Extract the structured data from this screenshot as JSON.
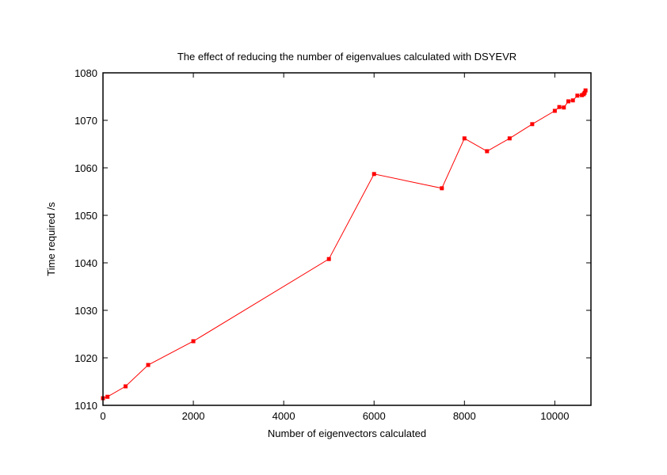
{
  "chart_data": {
    "type": "line",
    "title": "The effect of reducing the number of eigenvalues calculated with DSYEVR",
    "xlabel": "Number of eigenvectors calculated",
    "ylabel": "Time required /s",
    "xlim": [
      0,
      10800
    ],
    "ylim": [
      1010,
      1080
    ],
    "xticks": [
      0,
      2000,
      4000,
      6000,
      8000,
      10000
    ],
    "yticks": [
      1010,
      1020,
      1030,
      1040,
      1050,
      1060,
      1070,
      1080
    ],
    "grid": false,
    "series": [
      {
        "name": "DSYEVR",
        "color": "#ff0000",
        "x": [
          0,
          100,
          500,
          1000,
          2000,
          5000,
          6000,
          7500,
          8000,
          8500,
          9000,
          9500,
          10000,
          10100,
          10200,
          10300,
          10400,
          10500,
          10600,
          10640,
          10660,
          10680
        ],
        "y": [
          1011.5,
          1011.8,
          1014.0,
          1018.5,
          1023.5,
          1040.8,
          1058.7,
          1055.7,
          1066.2,
          1063.5,
          1066.2,
          1069.2,
          1072.0,
          1072.8,
          1072.7,
          1074.0,
          1074.2,
          1075.2,
          1075.3,
          1075.5,
          1075.8,
          1076.3
        ]
      }
    ]
  }
}
